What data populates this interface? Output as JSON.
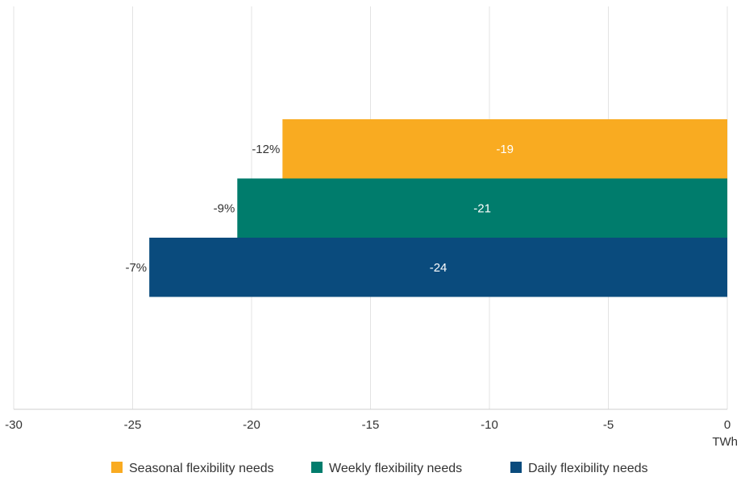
{
  "chart_data": {
    "type": "bar",
    "orientation": "horizontal",
    "xlim": [
      -30,
      0
    ],
    "x_ticks": [
      -30,
      -25,
      -20,
      -15,
      -10,
      -5,
      0
    ],
    "x_tick_labels": [
      "-30",
      "-25",
      "-20",
      "-15",
      "-10",
      "-5",
      "0"
    ],
    "unit": "TWh",
    "grid": "vertical",
    "legend_position": "bottom",
    "series": [
      {
        "name": "Seasonal flexibility needs",
        "value": -18.7,
        "value_label": "-19",
        "pct_label": "-12%",
        "color": "#f9ab21"
      },
      {
        "name": "Weekly flexibility needs",
        "value": -20.6,
        "value_label": "-21",
        "pct_label": "-9%",
        "color": "#007c6c"
      },
      {
        "name": "Daily flexibility needs",
        "value": -24.3,
        "value_label": "-24",
        "pct_label": "-7%",
        "color": "#0a4b7d"
      }
    ]
  }
}
